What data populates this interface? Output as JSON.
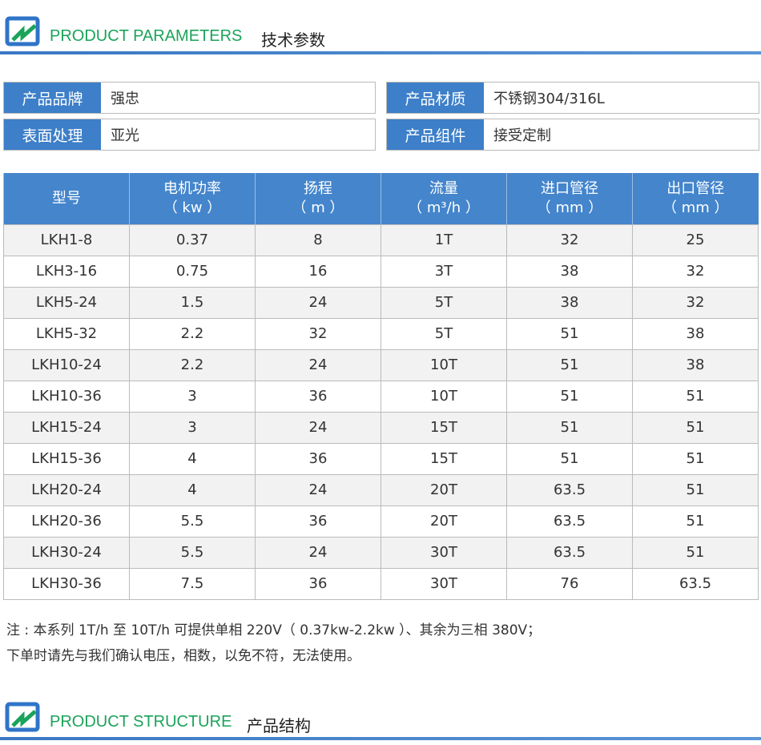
{
  "section1": {
    "en": "PRODUCT PARAMETERS",
    "cn": "技术参数"
  },
  "info": [
    {
      "label": "产品品牌",
      "value": "强忠"
    },
    {
      "label": "产品材质",
      "value": "不锈钢304/316L"
    },
    {
      "label": "表面处理",
      "value": "亚光"
    },
    {
      "label": "产品组件",
      "value": "接受定制"
    }
  ],
  "table": {
    "headers": [
      [
        "型号",
        ""
      ],
      [
        "电机功率",
        "（ kw ）"
      ],
      [
        "扬程",
        "（ m ）"
      ],
      [
        "流量",
        "（ m³/h ）"
      ],
      [
        "进口管径",
        "（ mm ）"
      ],
      [
        "出口管径",
        "（ mm ）"
      ]
    ],
    "rows": [
      [
        "LKH1-8",
        "0.37",
        "8",
        "1T",
        "32",
        "25"
      ],
      [
        "LKH3-16",
        "0.75",
        "16",
        "3T",
        "38",
        "32"
      ],
      [
        "LKH5-24",
        "1.5",
        "24",
        "5T",
        "38",
        "32"
      ],
      [
        "LKH5-32",
        "2.2",
        "32",
        "5T",
        "51",
        "38"
      ],
      [
        "LKH10-24",
        "2.2",
        "24",
        "10T",
        "51",
        "38"
      ],
      [
        "LKH10-36",
        "3",
        "36",
        "10T",
        "51",
        "51"
      ],
      [
        "LKH15-24",
        "3",
        "24",
        "15T",
        "51",
        "51"
      ],
      [
        "LKH15-36",
        "4",
        "36",
        "15T",
        "51",
        "51"
      ],
      [
        "LKH20-24",
        "4",
        "24",
        "20T",
        "63.5",
        "51"
      ],
      [
        "LKH20-36",
        "5.5",
        "36",
        "20T",
        "63.5",
        "51"
      ],
      [
        "LKH30-24",
        "5.5",
        "24",
        "30T",
        "63.5",
        "51"
      ],
      [
        "LKH30-36",
        "7.5",
        "36",
        "30T",
        "76",
        "63.5"
      ]
    ]
  },
  "note": {
    "line1": "注 : 本系列 1T/h 至 10T/h 可提供单相 220V（ 0.37kw-2.2kw ）、其余为三相 380V；",
    "line2": "下单时请先与我们确认电压，相数，以免不符，无法使用。"
  },
  "section2": {
    "en": "PRODUCT STRUCTURE",
    "cn": "产品结构"
  },
  "colors": {
    "brand_blue": "#3d7fc8",
    "accent_green": "#1aa35a"
  }
}
